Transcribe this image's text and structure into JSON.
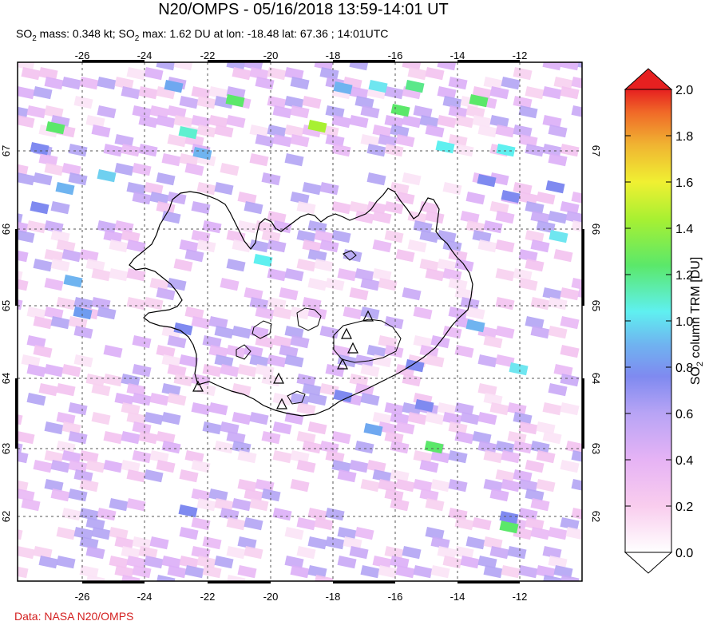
{
  "title": "N20/OMPS - 05/16/2018 13:59-14:01 UT",
  "subtitle": {
    "mass_prefix": "SO",
    "mass_sub": "2",
    "mass_text": " mass: 0.348 kt; SO",
    "max_sub": "2",
    "max_text": " max: 1.62 DU at lon: -18.48 lat: 67.36 ; 14:01UTC"
  },
  "credit": "Data: NASA N20/OMPS",
  "map": {
    "lon_ticks": [
      "-26",
      "-24",
      "-22",
      "-20",
      "-18",
      "-16",
      "-14",
      "-12"
    ],
    "lat_ticks": [
      "67",
      "66",
      "65",
      "64",
      "63",
      "62"
    ],
    "lon_values": [
      -26,
      -24,
      -22,
      -20,
      -18,
      -16,
      -14,
      -12
    ],
    "lat_values": [
      67,
      66,
      65,
      64,
      63,
      62
    ],
    "lon_range": [
      -28,
      -10
    ],
    "lat_range": [
      61.2,
      68
    ],
    "volcano_count": 7
  },
  "colorbar": {
    "ticks": [
      "2.0",
      "1.8",
      "1.6",
      "1.4",
      "1.2",
      "1.0",
      "0.8",
      "0.6",
      "0.4",
      "0.2",
      "0.0"
    ],
    "label_prefix": "SO",
    "label_sub": "2",
    "label_suffix": " column TRM [DU]",
    "range": [
      0.0,
      2.0
    ],
    "colors": [
      "#ffffff",
      "#f9cdee",
      "#e6b3f5",
      "#b8a4f5",
      "#7f8af0",
      "#6fb4f0",
      "#5ff0f0",
      "#5be86a",
      "#a8f032",
      "#f0f032",
      "#f0b432",
      "#f06a28",
      "#e62020"
    ]
  }
}
